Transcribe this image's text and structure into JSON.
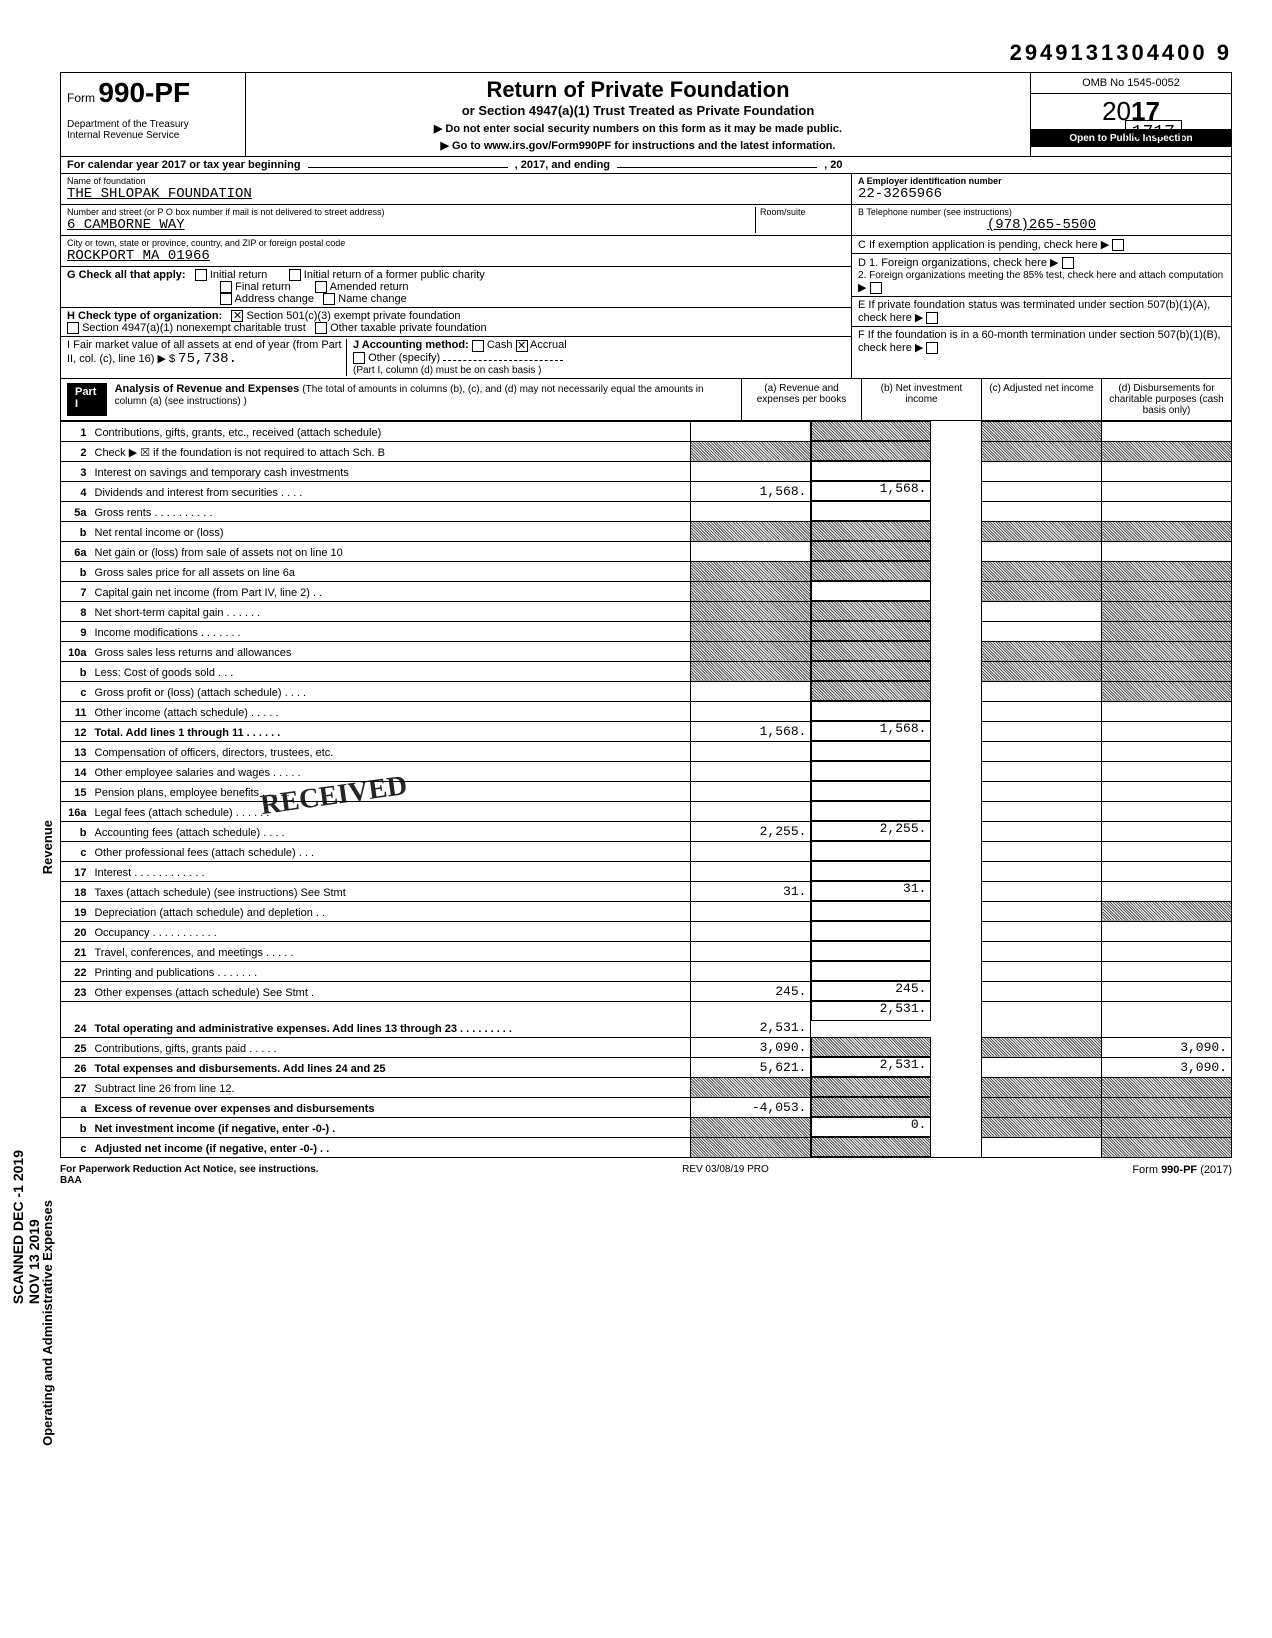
{
  "dln": "2949131304400 9",
  "form": {
    "prefix": "Form",
    "number": "990-PF"
  },
  "header": {
    "title": "Return of Private Foundation",
    "subtitle": "or Section 4947(a)(1) Trust Treated as Private Foundation",
    "warn": "Do not enter social security numbers on this form as it may be made public.",
    "goto": "Go to www.irs.gov/Form990PF for instructions and the latest information."
  },
  "dept1": "Department of the Treasury",
  "dept2": "Internal Revenue Service",
  "omb": "OMB No 1545-0052",
  "year_outline": "20",
  "year_bold": "17",
  "open": "Open to Public Inspection",
  "cal": "For calendar year 2017 or tax year beginning",
  "cal_mid": ", 2017, and ending",
  "cal_end": ", 20",
  "seq": "1717",
  "foundation": {
    "name_label": "Name of foundation",
    "name": "THE SHLOPAK FOUNDATION",
    "addr_label": "Number and street (or P O box number if mail is not delivered to street address)",
    "room_label": "Room/suite",
    "addr": "6 CAMBORNE WAY",
    "city_label": "City or town, state or province, country, and ZIP or foreign postal code",
    "city": "ROCKPORT MA 01966"
  },
  "right": {
    "a_label": "A  Employer identification number",
    "a_val": "22-3265966",
    "b_label": "B  Telephone number (see instructions)",
    "b_val": "(978)265-5500",
    "c_label": "C  If exemption application is pending, check here ▶",
    "d1": "D  1. Foreign organizations, check here",
    "d2": "2. Foreign organizations meeting the 85% test, check here and attach computation",
    "e": "E  If private foundation status was terminated under section 507(b)(1)(A), check here",
    "f": "F  If the foundation is in a 60-month termination under section 507(b)(1)(B), check here"
  },
  "g": {
    "label": "G  Check all that apply:",
    "o1": "Initial return",
    "o2": "Initial return of a former public charity",
    "o3": "Final return",
    "o4": "Amended return",
    "o5": "Address change",
    "o6": "Name change"
  },
  "h": {
    "label": "H  Check type of organization:",
    "o1": "Section 501(c)(3) exempt private foundation",
    "o2": "Section 4947(a)(1) nonexempt charitable trust",
    "o3": "Other taxable private foundation"
  },
  "i": {
    "label": "I   Fair market value of all assets at end of year  (from Part II, col. (c), line 16) ▶ $",
    "val": "75,738.",
    "j_label": "J   Accounting method:",
    "j_cash": "Cash",
    "j_accr": "Accrual",
    "j_other": "Other (specify)",
    "j_note": "(Part I, column (d) must be on cash basis )"
  },
  "part1": {
    "tag": "Part I",
    "title": "Analysis of Revenue and Expenses",
    "note": "(The total of amounts in columns (b), (c), and (d) may not necessarily equal the amounts in column (a) (see instructions) )",
    "ca": "(a) Revenue and expenses per books",
    "cb": "(b) Net investment income",
    "cc": "(c) Adjusted net income",
    "cd": "(d) Disbursements for charitable purposes (cash basis only)"
  },
  "side_rev": "Revenue",
  "side_exp": "Operating and Administrative Expenses",
  "side_stamp_1": "SCANNED DEC -1 2019",
  "side_stamp_2": "NOV 13 2019",
  "stamp": "RECEIVED",
  "lines": [
    {
      "n": "1",
      "d": "Contributions, gifts, grants, etc., received (attach schedule)",
      "a": "",
      "b": "shade",
      "c": "shade",
      "e": ""
    },
    {
      "n": "2",
      "d": "Check ▶ ☒ if the foundation is not required to attach Sch. B",
      "a": "shade",
      "b": "shade",
      "c": "shade",
      "e": "shade"
    },
    {
      "n": "3",
      "d": "Interest on savings and temporary cash investments",
      "a": "",
      "b": "",
      "c": "",
      "e": ""
    },
    {
      "n": "4",
      "d": "Dividends and interest from securities  .   .   .   .",
      "a": "1,568.",
      "b": "1,568.",
      "c": "",
      "e": ""
    },
    {
      "n": "5a",
      "d": "Gross rents  .   .   .   .   .   .   .   .   .   .",
      "a": "",
      "b": "",
      "c": "",
      "e": ""
    },
    {
      "n": "b",
      "d": "Net rental income or (loss)",
      "a": "shade",
      "b": "shade",
      "c": "shade",
      "e": "shade"
    },
    {
      "n": "6a",
      "d": "Net gain or (loss) from sale of assets not on line 10",
      "a": "",
      "b": "shade",
      "c": "",
      "e": ""
    },
    {
      "n": "b",
      "d": "Gross sales price for all assets on line 6a",
      "a": "shade",
      "b": "shade",
      "c": "shade",
      "e": "shade"
    },
    {
      "n": "7",
      "d": "Capital gain net income (from Part IV, line 2)  .   .",
      "a": "shade",
      "b": "",
      "c": "shade",
      "e": "shade"
    },
    {
      "n": "8",
      "d": "Net short-term capital gain  .   .   .   .   .   .",
      "a": "shade",
      "b": "shade",
      "c": "",
      "e": "shade"
    },
    {
      "n": "9",
      "d": "Income modifications  .   .   .   .   .   .   .",
      "a": "shade",
      "b": "shade",
      "c": "",
      "e": "shade"
    },
    {
      "n": "10a",
      "d": "Gross sales less returns and allowances",
      "a": "shade",
      "b": "shade",
      "c": "shade",
      "e": "shade"
    },
    {
      "n": "b",
      "d": "Less: Cost of goods sold  .   .   .",
      "a": "shade",
      "b": "shade",
      "c": "shade",
      "e": "shade"
    },
    {
      "n": "c",
      "d": "Gross profit or (loss) (attach schedule)  .   .   .   .",
      "a": "",
      "b": "shade",
      "c": "",
      "e": "shade"
    },
    {
      "n": "11",
      "d": "Other income (attach schedule)  .   .   .   .   .",
      "a": "",
      "b": "",
      "c": "",
      "e": ""
    },
    {
      "n": "12",
      "d": "Total. Add lines 1 through 11  .   .   .   .   .   .",
      "a": "1,568.",
      "b": "1,568.",
      "c": "",
      "e": "",
      "bold": true
    },
    {
      "n": "13",
      "d": "Compensation of officers, directors, trustees, etc.",
      "a": "",
      "b": "",
      "c": "",
      "e": ""
    },
    {
      "n": "14",
      "d": "Other employee salaries and wages .   .   .   .   .",
      "a": "",
      "b": "",
      "c": "",
      "e": ""
    },
    {
      "n": "15",
      "d": "Pension plans, employee benefits  .   .   .   .   .",
      "a": "",
      "b": "",
      "c": "",
      "e": ""
    },
    {
      "n": "16a",
      "d": "Legal fees (attach schedule)   .   .   .   .   .   .",
      "a": "",
      "b": "",
      "c": "",
      "e": ""
    },
    {
      "n": "b",
      "d": "Accounting fees (attach schedule)   .   .   .   .",
      "a": "2,255.",
      "b": "2,255.",
      "c": "",
      "e": ""
    },
    {
      "n": "c",
      "d": "Other professional fees (attach schedule)  .   .   .",
      "a": "",
      "b": "",
      "c": "",
      "e": ""
    },
    {
      "n": "17",
      "d": "Interest  .   .   .   .   .   .   .   .   .   .   .   .",
      "a": "",
      "b": "",
      "c": "",
      "e": ""
    },
    {
      "n": "18",
      "d": "Taxes (attach schedule) (see instructions)  See Stmt",
      "a": "31.",
      "b": "31.",
      "c": "",
      "e": ""
    },
    {
      "n": "19",
      "d": "Depreciation (attach schedule) and depletion .   .",
      "a": "",
      "b": "",
      "c": "",
      "e": "shade"
    },
    {
      "n": "20",
      "d": "Occupancy .   .   .   .   .   .   .   .   .   .   .",
      "a": "",
      "b": "",
      "c": "",
      "e": ""
    },
    {
      "n": "21",
      "d": "Travel, conferences, and meetings  .   .   .   .   .",
      "a": "",
      "b": "",
      "c": "",
      "e": ""
    },
    {
      "n": "22",
      "d": "Printing and publications   .   .   .   .   .   .   .",
      "a": "",
      "b": "",
      "c": "",
      "e": ""
    },
    {
      "n": "23",
      "d": "Other expenses (attach schedule)  See Stmt   .",
      "a": "245.",
      "b": "245.",
      "c": "",
      "e": ""
    },
    {
      "n": "24",
      "d": "Total operating and administrative expenses. Add lines 13 through 23 .   .   .   .   .   .   .   .   .",
      "a": "2,531.",
      "b": "2,531.",
      "c": "",
      "e": "",
      "bold": true,
      "tall": true
    },
    {
      "n": "25",
      "d": "Contributions, gifts, grants paid   .   .   .   .   .",
      "a": "3,090.",
      "b": "shade",
      "c": "shade",
      "e": "3,090."
    },
    {
      "n": "26",
      "d": "Total expenses and disbursements. Add lines 24 and 25",
      "a": "5,621.",
      "b": "2,531.",
      "c": "",
      "e": "3,090.",
      "bold": true
    },
    {
      "n": "27",
      "d": "Subtract line 26 from line 12.",
      "a": "shade",
      "b": "shade",
      "c": "shade",
      "e": "shade"
    },
    {
      "n": "a",
      "d": "Excess of revenue over expenses and disbursements",
      "a": "-4,053.",
      "b": "shade",
      "c": "shade",
      "e": "shade",
      "bold": true
    },
    {
      "n": "b",
      "d": "Net investment income (if negative, enter -0-)   .",
      "a": "shade",
      "b": "0.",
      "c": "shade",
      "e": "shade",
      "bold": true
    },
    {
      "n": "c",
      "d": "Adjusted net income (if negative, enter -0-)  .   .",
      "a": "shade",
      "b": "shade",
      "c": "",
      "e": "shade",
      "bold": true
    }
  ],
  "footer": {
    "l": "For Paperwork Reduction Act Notice, see instructions.",
    "baa": "BAA",
    "mid": "REV 03/08/19 PRO",
    "r": "Form 990-PF (2017)"
  }
}
